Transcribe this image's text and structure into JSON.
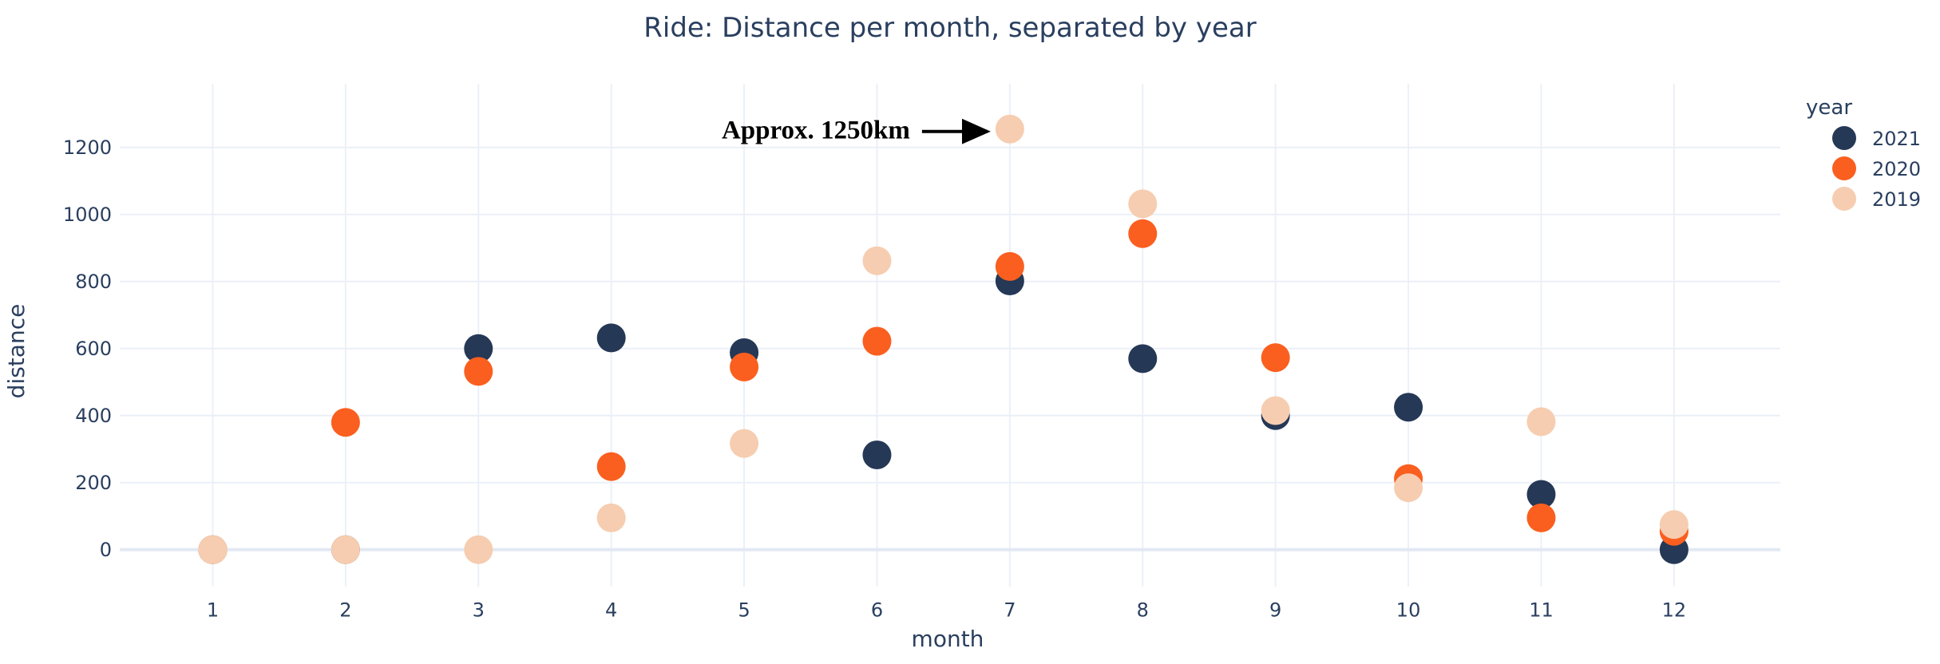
{
  "chart_data": {
    "type": "scatter",
    "title": "Ride: Distance per month, separated by year",
    "xlabel": "month",
    "ylabel": "distance",
    "x_ticks": [
      1,
      2,
      3,
      4,
      5,
      6,
      7,
      8,
      9,
      10,
      11,
      12
    ],
    "y_ticks": [
      0,
      200,
      400,
      600,
      800,
      1000,
      1200
    ],
    "xlim": [
      0.3,
      12.8
    ],
    "ylim": [
      -110,
      1390
    ],
    "grid": true,
    "legend": {
      "title": "year",
      "placement": "top-right"
    },
    "x": [
      1,
      2,
      3,
      4,
      5,
      6,
      7,
      8,
      9,
      10,
      11,
      12
    ],
    "series": [
      {
        "name": "2021",
        "color": "#253856",
        "values": [
          0,
          0,
          600,
          632,
          588,
          283,
          802,
          570,
          400,
          425,
          165,
          0
        ]
      },
      {
        "name": "2020",
        "color": "#fa5f1f",
        "values": [
          0,
          380,
          532,
          248,
          545,
          622,
          845,
          943,
          573,
          212,
          95,
          55
        ]
      },
      {
        "name": "2019",
        "color": "#f6cdb0",
        "values": [
          0,
          0,
          0,
          95,
          317,
          862,
          1255,
          1032,
          415,
          185,
          382,
          75
        ]
      }
    ],
    "annotation": {
      "text": "Approx. 1250km",
      "x": 7,
      "y": 1255
    }
  }
}
